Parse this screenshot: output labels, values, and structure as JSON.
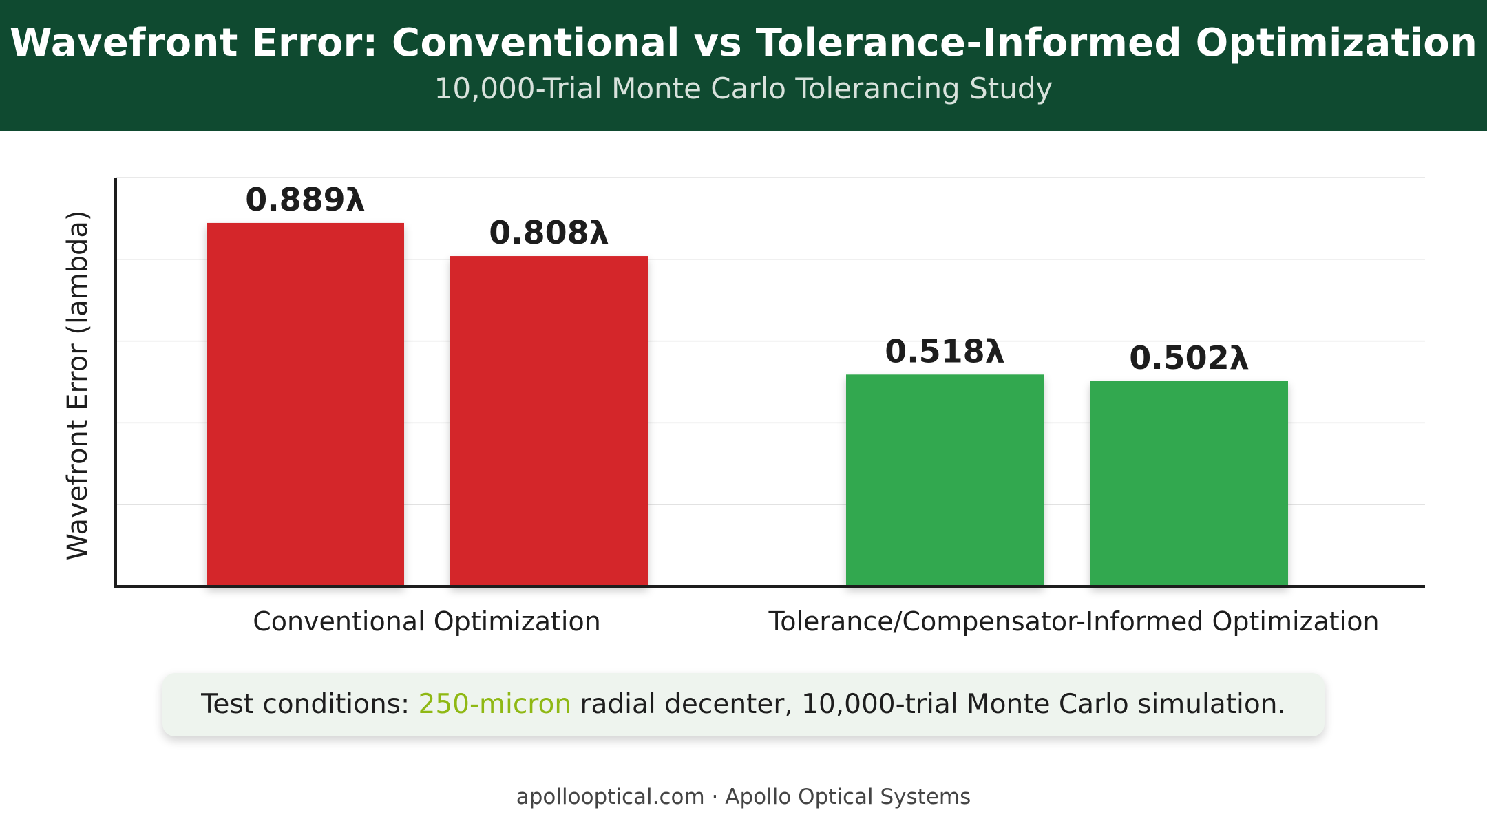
{
  "header": {
    "title": "Wavefront Error: Conventional vs Tolerance-Informed Optimization",
    "subtitle": "10,000-Trial Monte Carlo Tolerancing Study"
  },
  "chart_data": {
    "type": "bar",
    "title": "Wavefront Error: Conventional vs Tolerance-Informed Optimization",
    "subtitle": "10,000-Trial Monte Carlo Tolerancing Study",
    "xlabel": "",
    "ylabel": "Wavefront Error (lambda)",
    "ylim": [
      0,
      1.0
    ],
    "grid": true,
    "groups": [
      {
        "label": "Conventional Optimization",
        "color": "#d4262b",
        "bars": [
          {
            "value": 0.889,
            "label": "0.889λ"
          },
          {
            "value": 0.808,
            "label": "0.808λ"
          }
        ]
      },
      {
        "label": "Tolerance/Compensator-Informed Optimization",
        "color": "#31a84f",
        "bars": [
          {
            "value": 0.518,
            "label": "0.518λ"
          },
          {
            "value": 0.502,
            "label": "0.502λ"
          }
        ]
      }
    ]
  },
  "note": {
    "prefix": "Test conditions: ",
    "highlight": "250-micron",
    "suffix": " radial decenter, 10,000-trial Monte Carlo simulation.",
    "highlight_color": "#8fb814"
  },
  "footer": {
    "text": "apollooptical.com · Apollo Optical Systems"
  }
}
